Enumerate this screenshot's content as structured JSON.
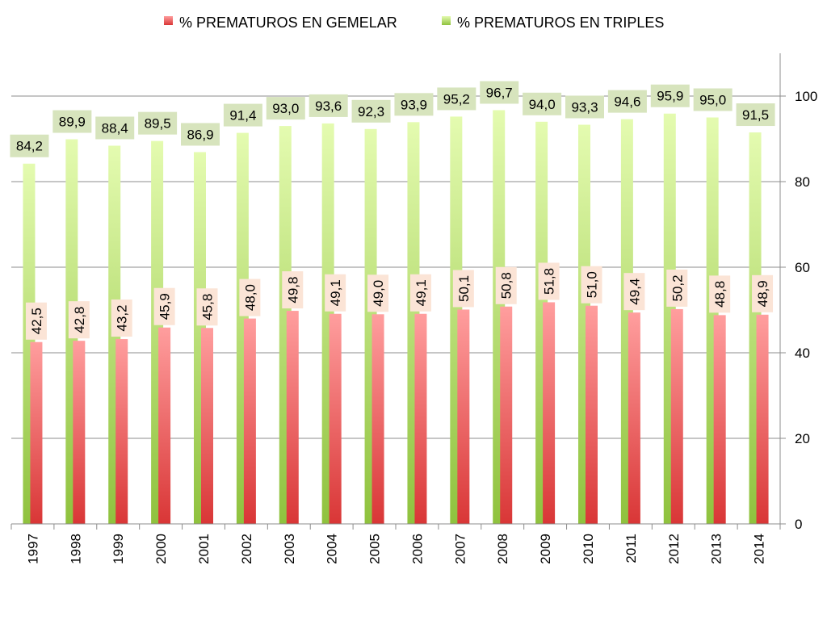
{
  "chart_data": {
    "type": "bar",
    "categories": [
      "1997",
      "1998",
      "1999",
      "2000",
      "2001",
      "2002",
      "2003",
      "2004",
      "2005",
      "2006",
      "2007",
      "2008",
      "2009",
      "2010",
      "2011",
      "2012",
      "2013",
      "2014"
    ],
    "series": [
      {
        "name": "% PREMATUROS EN GEMELAR",
        "values": [
          42.5,
          42.8,
          43.2,
          45.9,
          45.8,
          48.0,
          49.8,
          49.1,
          49.0,
          49.1,
          50.1,
          50.8,
          51.8,
          51.0,
          49.4,
          50.2,
          48.8,
          48.9
        ],
        "labels": [
          "42,5",
          "42,8",
          "43,2",
          "45,9",
          "45,8",
          "48,0",
          "49,8",
          "49,1",
          "49,0",
          "49,1",
          "50,1",
          "50,8",
          "51,8",
          "51,0",
          "49,4",
          "50,2",
          "48,8",
          "48,9"
        ],
        "color_top": "#ff9e9e",
        "color_bottom": "#d93636",
        "label_bg": "#fbe4d6"
      },
      {
        "name": "% PREMATUROS EN TRIPLES",
        "values": [
          84.2,
          89.9,
          88.4,
          89.5,
          86.9,
          91.4,
          93.0,
          93.6,
          92.3,
          93.9,
          95.2,
          96.7,
          94.0,
          93.3,
          94.6,
          95.9,
          95.0,
          91.5
        ],
        "labels": [
          "84,2",
          "89,9",
          "88,4",
          "89,5",
          "86,9",
          "91,4",
          "93,0",
          "93,6",
          "92,3",
          "93,9",
          "95,2",
          "96,7",
          "94,0",
          "93,3",
          "94,6",
          "95,9",
          "95,0",
          "91,5"
        ],
        "color_top": "#e4fbb0",
        "color_bottom": "#8fc23e",
        "label_bg": "#d7e4bd"
      }
    ],
    "y_axis": {
      "position": "right",
      "min": 0,
      "max": 110,
      "ticks": [
        0,
        20,
        40,
        60,
        80,
        100
      ]
    },
    "grid": true,
    "legend_position": "top"
  }
}
